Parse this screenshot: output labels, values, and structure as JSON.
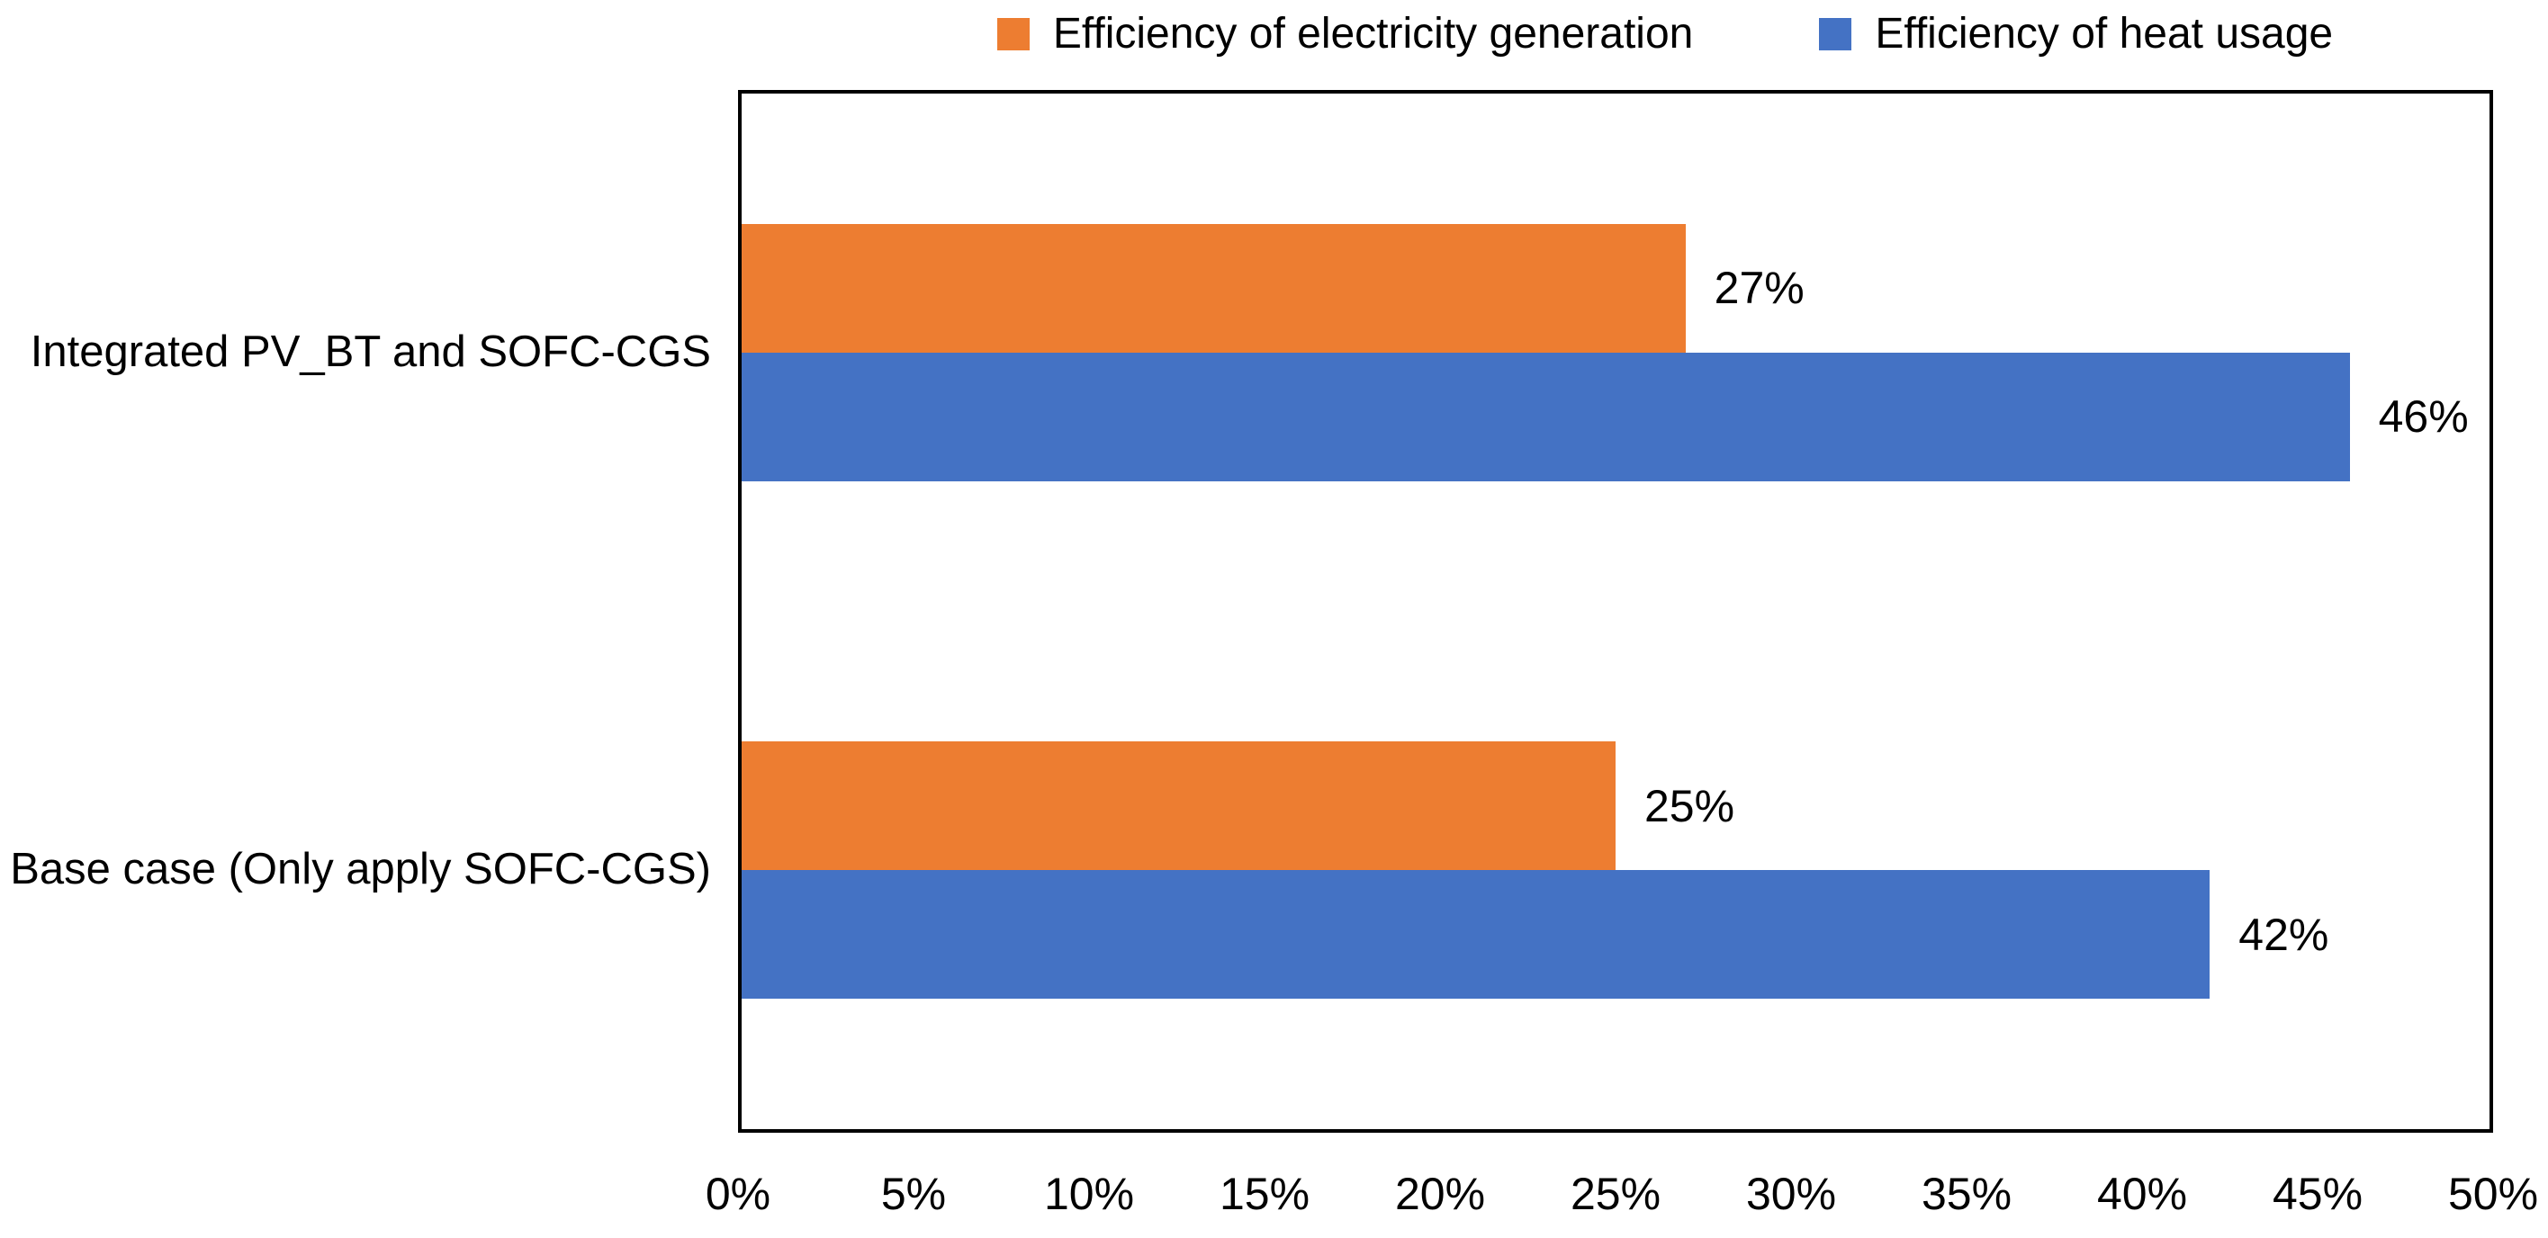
{
  "chart_data": {
    "type": "bar",
    "orientation": "horizontal",
    "categories": [
      "Integrated PV_BT and SOFC-CGS",
      "Base case (Only apply SOFC-CGS)"
    ],
    "series": [
      {
        "name": "Efficiency of electricity generation",
        "color": "#ED7D31",
        "values": [
          27,
          25
        ],
        "data_labels": [
          "27%",
          "25%"
        ]
      },
      {
        "name": "Efficiency of heat usage",
        "color": "#4472C4",
        "values": [
          46,
          42
        ],
        "data_labels": [
          "46%",
          "42%"
        ]
      }
    ],
    "xlim": [
      0,
      50
    ],
    "x_tick_labels": [
      "0%",
      "5%",
      "10%",
      "15%",
      "20%",
      "25%",
      "30%",
      "35%",
      "40%",
      "45%",
      "50%"
    ],
    "legend_position": "top",
    "grid": false,
    "plot_border_color": "#000000",
    "text_color": "#000000",
    "background_color": "#FFFFFF"
  }
}
